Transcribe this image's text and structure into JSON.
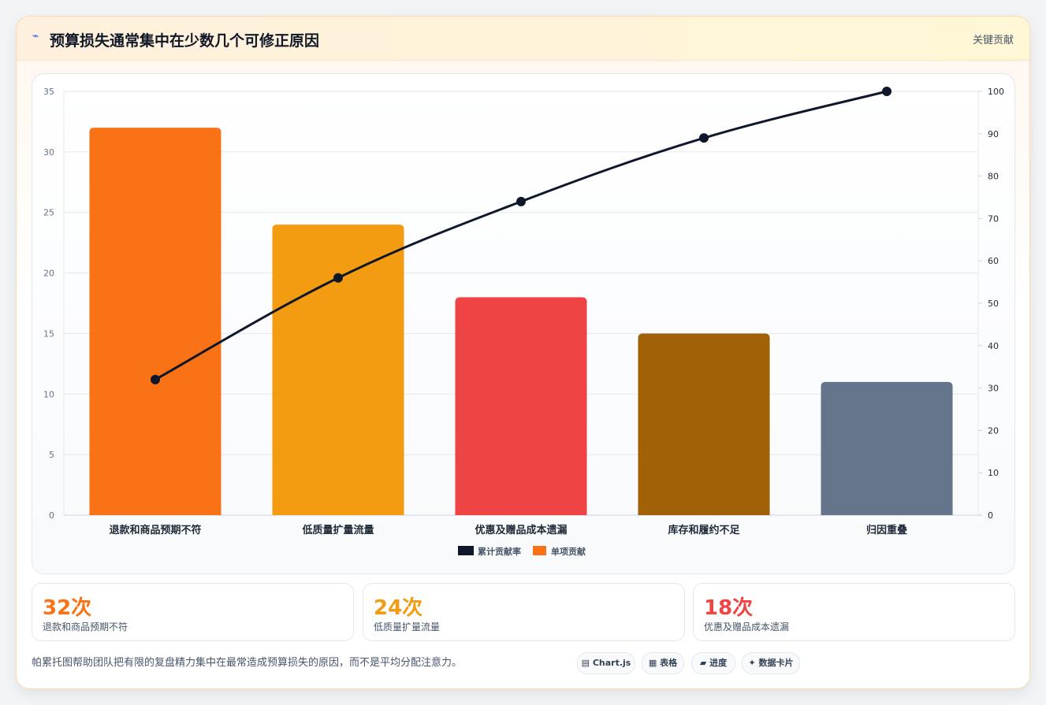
{
  "header": {
    "icon": "lightning-icon",
    "title": "预算损失通常集中在少数几个可修正原因",
    "tag": "关键贡献"
  },
  "chart_data": {
    "type": "bar",
    "categories": [
      "退款和商品预期不符",
      "低质量扩量流量",
      "优惠及赠品成本遗漏",
      "库存和履约不足",
      "归因重叠"
    ],
    "series": [
      {
        "name": "单项贡献",
        "type": "bar",
        "axis": "left",
        "values": [
          32,
          24,
          18,
          15,
          11
        ]
      },
      {
        "name": "累计贡献率",
        "type": "line",
        "axis": "right",
        "values": [
          32,
          56,
          74,
          89,
          100
        ]
      }
    ],
    "bar_colors": [
      "#f97316",
      "#f39c12",
      "#ef4444",
      "#a16207",
      "#64748b"
    ],
    "line_color": "#0f172a",
    "y_left": {
      "min": 0,
      "max": 35,
      "ticks": [
        0,
        5,
        10,
        15,
        20,
        25,
        30,
        35
      ]
    },
    "y_right": {
      "min": 0,
      "max": 100,
      "ticks": [
        0,
        10,
        20,
        30,
        40,
        50,
        60,
        70,
        80,
        90,
        100
      ]
    },
    "legend": [
      {
        "label": "累计贡献率",
        "color": "#0f172a"
      },
      {
        "label": "单项贡献",
        "color": "#f97316"
      }
    ],
    "legend_position": "bottom",
    "grid": true
  },
  "stats": [
    {
      "value": "32次",
      "label": "退款和商品预期不符",
      "color": "#f97316"
    },
    {
      "value": "24次",
      "label": "低质量扩量流量",
      "color": "#f39c12"
    },
    {
      "value": "18次",
      "label": "优惠及赠品成本遗漏",
      "color": "#ef4444"
    }
  ],
  "footnote": "帕累托图帮助团队把有限的复盘精力集中在最常造成预算损失的原因，而不是平均分配注意力。",
  "chips": [
    "▤ Chart.js",
    "▦ 表格",
    "▰ 进度",
    "✦ 数据卡片"
  ]
}
